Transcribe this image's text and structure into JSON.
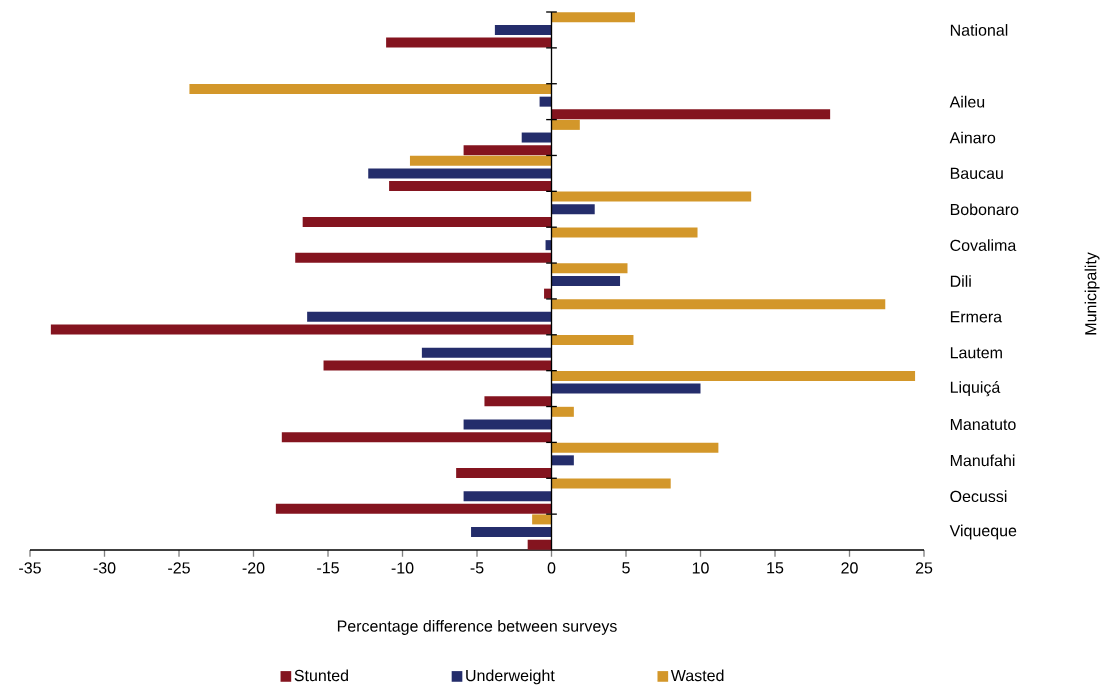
{
  "chart_data": {
    "type": "bar",
    "orientation": "horizontal",
    "xlabel": "Percentage difference between surveys",
    "ylabel": "Municipality",
    "categories": [
      "National",
      null,
      "Aileu",
      "Ainaro",
      "Baucau",
      "Bobonaro",
      "Covalima",
      "Dili",
      "Ermera",
      "Lautem",
      "Liquiçá",
      "Manatuto",
      "Manufahi",
      "Oecussi",
      "Viqueque"
    ],
    "series": [
      {
        "name": "Stunted",
        "color": "#84141f",
        "values": [
          -11.1,
          null,
          18.7,
          -5.9,
          -10.9,
          -16.7,
          -17.2,
          -0.5,
          -33.6,
          -15.3,
          -4.5,
          -18.1,
          -6.4,
          -18.5,
          -1.6
        ]
      },
      {
        "name": "Underweight",
        "color": "#242d6b",
        "values": [
          -3.8,
          null,
          -0.8,
          -2.0,
          -12.3,
          2.9,
          -0.4,
          4.6,
          -16.4,
          -8.7,
          10.0,
          -5.9,
          1.5,
          -5.9,
          -5.4
        ]
      },
      {
        "name": "Wasted",
        "color": "#d3972a",
        "values": [
          5.6,
          null,
          -24.3,
          1.9,
          -9.5,
          13.4,
          9.8,
          5.1,
          22.4,
          5.5,
          24.4,
          1.5,
          11.2,
          8.0,
          -1.3
        ]
      }
    ],
    "xlim": [
      -35,
      25
    ],
    "xticks": [
      -35,
      -30,
      -25,
      -20,
      -15,
      -10,
      -5,
      0,
      5,
      10,
      15,
      20,
      25
    ],
    "legend": "bottom"
  }
}
